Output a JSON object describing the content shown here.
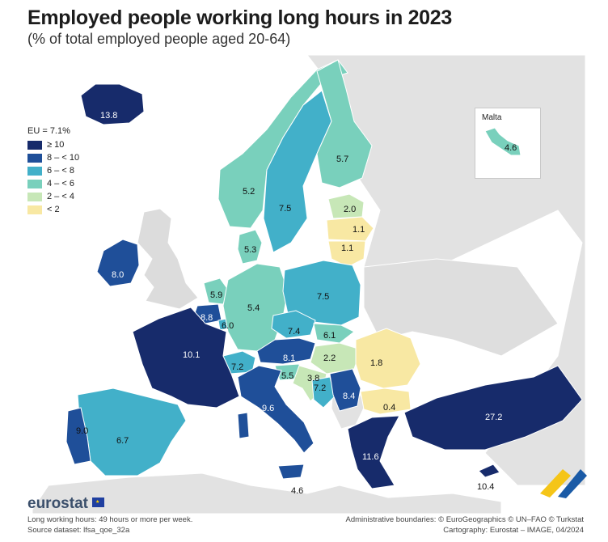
{
  "title": "Employed people working long hours in 2023",
  "subtitle": "(% of total employed people aged 20-64)",
  "legend": {
    "header": "EU = 7.1%",
    "classes": [
      {
        "label": "≥ 10",
        "color": "#172b6b"
      },
      {
        "label": "8 – < 10",
        "color": "#1f4f99"
      },
      {
        "label": "6 – < 8",
        "color": "#42b0c9"
      },
      {
        "label": "4 – < 6",
        "color": "#79d0bc"
      },
      {
        "label": "2 – < 4",
        "color": "#c7e7b7"
      },
      {
        "label": "< 2",
        "color": "#f8e8a3"
      }
    ]
  },
  "inset": {
    "label": "Malta",
    "value": "4.6"
  },
  "countries": [
    {
      "name": "Iceland",
      "value": "13.8"
    },
    {
      "name": "Norway",
      "value": "5.2"
    },
    {
      "name": "Sweden",
      "value": "7.5"
    },
    {
      "name": "Finland",
      "value": "5.7"
    },
    {
      "name": "Estonia",
      "value": "2.0"
    },
    {
      "name": "Latvia",
      "value": "1.1"
    },
    {
      "name": "Lithuania",
      "value": "1.1"
    },
    {
      "name": "Denmark",
      "value": "5.3"
    },
    {
      "name": "Ireland",
      "value": "8.0"
    },
    {
      "name": "Netherlands",
      "value": "5.9"
    },
    {
      "name": "Belgium",
      "value": "8.8"
    },
    {
      "name": "Luxembourg",
      "value": "6.0"
    },
    {
      "name": "Germany",
      "value": "5.4"
    },
    {
      "name": "Poland",
      "value": "7.5"
    },
    {
      "name": "Czechia",
      "value": "7.4"
    },
    {
      "name": "Slovakia",
      "value": "6.1"
    },
    {
      "name": "France",
      "value": "10.1"
    },
    {
      "name": "Switzerland",
      "value": "7.2"
    },
    {
      "name": "Austria",
      "value": "8.1"
    },
    {
      "name": "Hungary",
      "value": "2.2"
    },
    {
      "name": "Romania",
      "value": "1.8"
    },
    {
      "name": "Slovenia",
      "value": "5.5"
    },
    {
      "name": "Croatia",
      "value": "3.8"
    },
    {
      "name": "Bosnia and Herzegovina",
      "value": "7.2"
    },
    {
      "name": "Serbia",
      "value": "8.4"
    },
    {
      "name": "Bulgaria",
      "value": "0.4"
    },
    {
      "name": "Italy",
      "value": "9.6"
    },
    {
      "name": "Portugal",
      "value": "9.0"
    },
    {
      "name": "Spain",
      "value": "6.7"
    },
    {
      "name": "Greece",
      "value": "11.6"
    },
    {
      "name": "Türkiye",
      "value": "27.2"
    },
    {
      "name": "Malta (south)",
      "value": "4.6"
    },
    {
      "name": "Cyprus",
      "value": "10.4"
    }
  ],
  "footer": {
    "logo": "eurostat",
    "note": "Long working hours: 49 hours or more per week.",
    "source": "Source dataset: lfsa_qoe_32a",
    "boundaries": "Administrative boundaries: © EuroGeographics © UN–FAO © Turkstat",
    "cartography": "Cartography: Eurostat – IMAGE, 04/2024"
  }
}
